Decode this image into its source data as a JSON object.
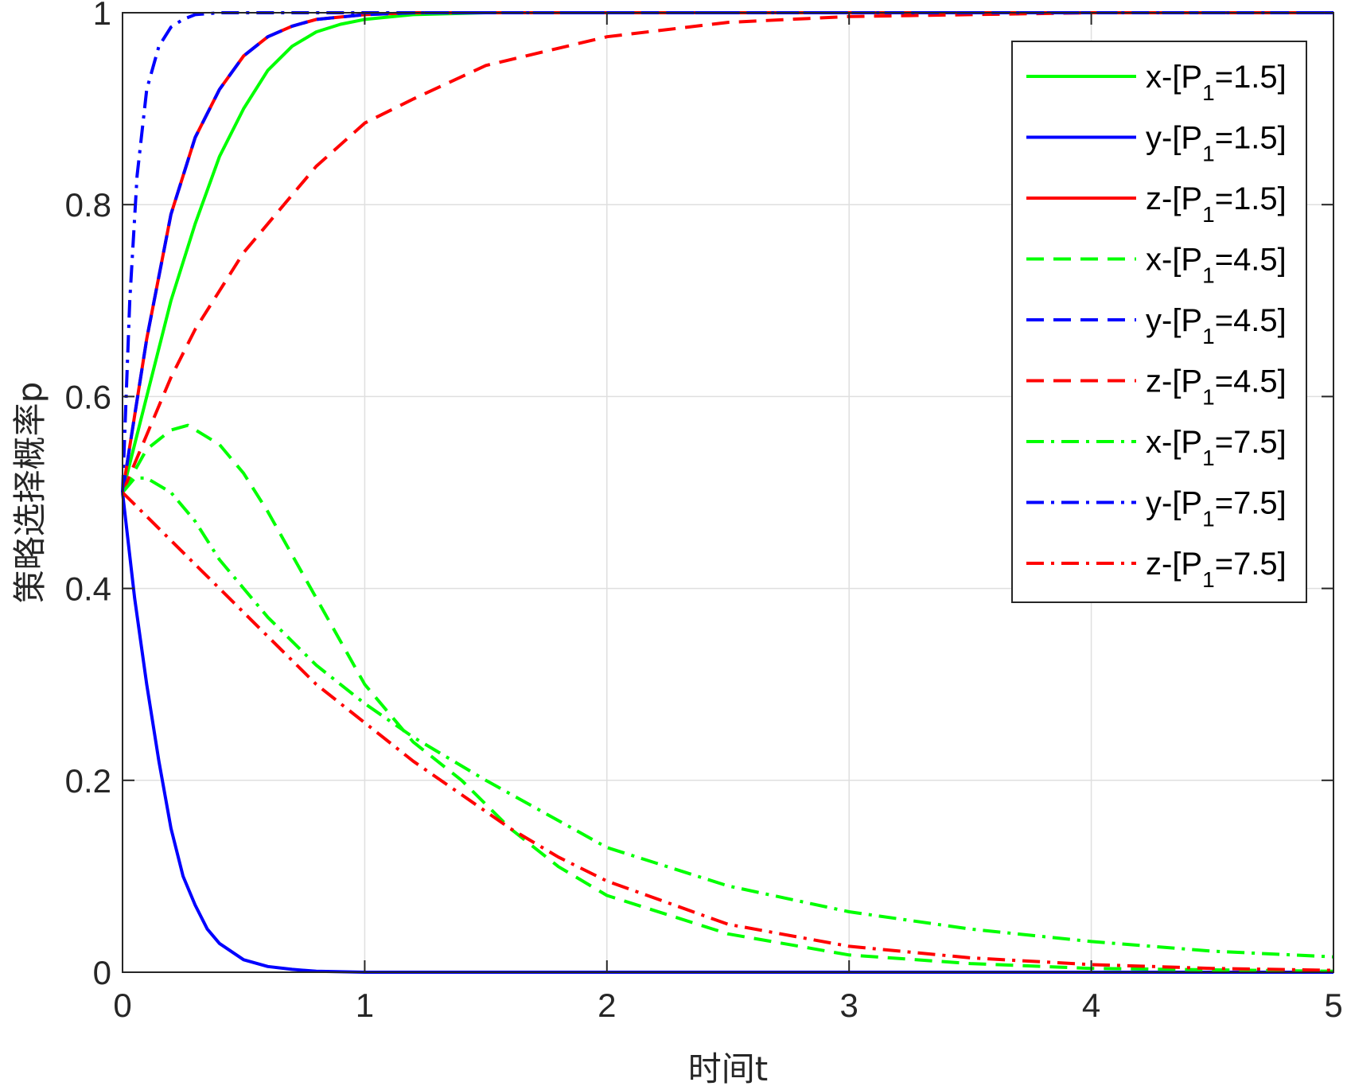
{
  "chart_data": {
    "type": "line",
    "title": "",
    "xlabel": "时间t",
    "ylabel": "策略选择概率p",
    "xlim": [
      0,
      5
    ],
    "ylim": [
      0,
      1
    ],
    "xticks": [
      "0",
      "1",
      "2",
      "3",
      "4",
      "5"
    ],
    "yticks": [
      "0",
      "0.2",
      "0.4",
      "0.6",
      "0.8",
      "1"
    ],
    "grid": true,
    "legend_position": "top-right",
    "colors": {
      "green": "#00ff00",
      "blue": "#0000ff",
      "red": "#ff0000"
    },
    "series": [
      {
        "legend": {
          "prefix": "x-[P",
          "sub": "1",
          "suffix": "=1.5]"
        },
        "color": "green",
        "dash": "solid",
        "x": [
          0,
          0.1,
          0.2,
          0.3,
          0.4,
          0.5,
          0.6,
          0.7,
          0.8,
          0.9,
          1.0,
          1.2,
          1.5,
          2.0,
          3.0,
          4.0,
          5.0
        ],
        "y": [
          0.5,
          0.6,
          0.7,
          0.78,
          0.85,
          0.9,
          0.94,
          0.965,
          0.98,
          0.988,
          0.993,
          0.998,
          1.0,
          1.0,
          1.0,
          1.0,
          1.0
        ]
      },
      {
        "legend": {
          "prefix": "y-[P",
          "sub": "1",
          "suffix": "=1.5]"
        },
        "color": "blue",
        "dash": "solid",
        "x": [
          0,
          0.05,
          0.1,
          0.15,
          0.2,
          0.25,
          0.3,
          0.35,
          0.4,
          0.5,
          0.6,
          0.7,
          0.8,
          1.0,
          1.5,
          2.0,
          3.0,
          4.0,
          5.0
        ],
        "y": [
          0.5,
          0.39,
          0.3,
          0.22,
          0.15,
          0.1,
          0.07,
          0.045,
          0.03,
          0.013,
          0.006,
          0.003,
          0.001,
          0.0,
          0.0,
          0.0,
          0.0,
          0.0,
          0.0
        ]
      },
      {
        "legend": {
          "prefix": "z-[P",
          "sub": "1",
          "suffix": "=1.5]"
        },
        "color": "red",
        "dash": "solid",
        "x": [
          0,
          0.1,
          0.2,
          0.3,
          0.4,
          0.5,
          0.6,
          0.7,
          0.8,
          1.0,
          1.2,
          1.5,
          2.0,
          3.0,
          4.0,
          5.0
        ],
        "y": [
          0.5,
          0.66,
          0.79,
          0.87,
          0.92,
          0.955,
          0.975,
          0.986,
          0.993,
          0.998,
          1.0,
          1.0,
          1.0,
          1.0,
          1.0,
          1.0
        ]
      },
      {
        "legend": {
          "prefix": "x-[P",
          "sub": "1",
          "suffix": "=4.5]"
        },
        "color": "green",
        "dash": "dashed",
        "x": [
          0,
          0.1,
          0.2,
          0.27,
          0.4,
          0.5,
          0.6,
          0.8,
          1.0,
          1.2,
          1.4,
          1.6,
          1.8,
          2.0,
          2.5,
          3.0,
          3.5,
          4.0,
          5.0
        ],
        "y": [
          0.5,
          0.545,
          0.565,
          0.57,
          0.55,
          0.52,
          0.48,
          0.39,
          0.3,
          0.24,
          0.2,
          0.15,
          0.11,
          0.08,
          0.04,
          0.018,
          0.009,
          0.004,
          0.001
        ]
      },
      {
        "legend": {
          "prefix": "y-[P",
          "sub": "1",
          "suffix": "=4.5]"
        },
        "color": "blue",
        "dash": "dashed",
        "x": [
          0,
          0.1,
          0.2,
          0.3,
          0.4,
          0.5,
          0.6,
          0.7,
          0.8,
          1.0,
          1.2,
          1.5,
          2.0,
          3.0,
          4.0,
          5.0
        ],
        "y": [
          0.5,
          0.66,
          0.79,
          0.87,
          0.92,
          0.955,
          0.975,
          0.986,
          0.993,
          0.998,
          1.0,
          1.0,
          1.0,
          1.0,
          1.0,
          1.0
        ]
      },
      {
        "legend": {
          "prefix": "z-[P",
          "sub": "1",
          "suffix": "=4.5]"
        },
        "color": "red",
        "dash": "dashed",
        "x": [
          0,
          0.1,
          0.2,
          0.3,
          0.4,
          0.5,
          0.6,
          0.8,
          1.0,
          1.2,
          1.5,
          2.0,
          2.5,
          3.0,
          3.5,
          4.0,
          5.0
        ],
        "y": [
          0.5,
          0.56,
          0.62,
          0.67,
          0.71,
          0.75,
          0.78,
          0.84,
          0.885,
          0.91,
          0.945,
          0.975,
          0.99,
          0.996,
          0.998,
          1.0,
          1.0
        ]
      },
      {
        "legend": {
          "prefix": "x-[P",
          "sub": "1",
          "suffix": "=7.5]"
        },
        "color": "green",
        "dash": "dashdot",
        "x": [
          0,
          0.05,
          0.1,
          0.2,
          0.3,
          0.4,
          0.5,
          0.6,
          0.8,
          1.0,
          1.2,
          1.5,
          2.0,
          2.5,
          3.0,
          3.5,
          4.0,
          4.5,
          5.0
        ],
        "y": [
          0.5,
          0.515,
          0.515,
          0.5,
          0.47,
          0.43,
          0.4,
          0.37,
          0.32,
          0.28,
          0.245,
          0.2,
          0.13,
          0.09,
          0.063,
          0.045,
          0.032,
          0.022,
          0.016
        ]
      },
      {
        "legend": {
          "prefix": "y-[P",
          "sub": "1",
          "suffix": "=7.5]"
        },
        "color": "blue",
        "dash": "dashdot",
        "x": [
          0,
          0.03,
          0.06,
          0.1,
          0.15,
          0.2,
          0.25,
          0.3,
          0.4,
          0.5,
          1.0,
          2.0,
          3.0,
          4.0,
          5.0
        ],
        "y": [
          0.5,
          0.7,
          0.83,
          0.92,
          0.965,
          0.985,
          0.993,
          0.998,
          1.0,
          1.0,
          1.0,
          1.0,
          1.0,
          1.0,
          1.0
        ]
      },
      {
        "legend": {
          "prefix": "z-[P",
          "sub": "1",
          "suffix": "=7.5]"
        },
        "color": "red",
        "dash": "dashdot",
        "x": [
          0,
          0.2,
          0.4,
          0.6,
          0.8,
          1.0,
          1.2,
          1.4,
          1.6,
          1.8,
          2.0,
          2.5,
          3.0,
          3.5,
          4.0,
          4.5,
          5.0
        ],
        "y": [
          0.5,
          0.45,
          0.4,
          0.35,
          0.3,
          0.26,
          0.22,
          0.185,
          0.15,
          0.12,
          0.095,
          0.05,
          0.027,
          0.015,
          0.008,
          0.004,
          0.002
        ]
      }
    ]
  }
}
